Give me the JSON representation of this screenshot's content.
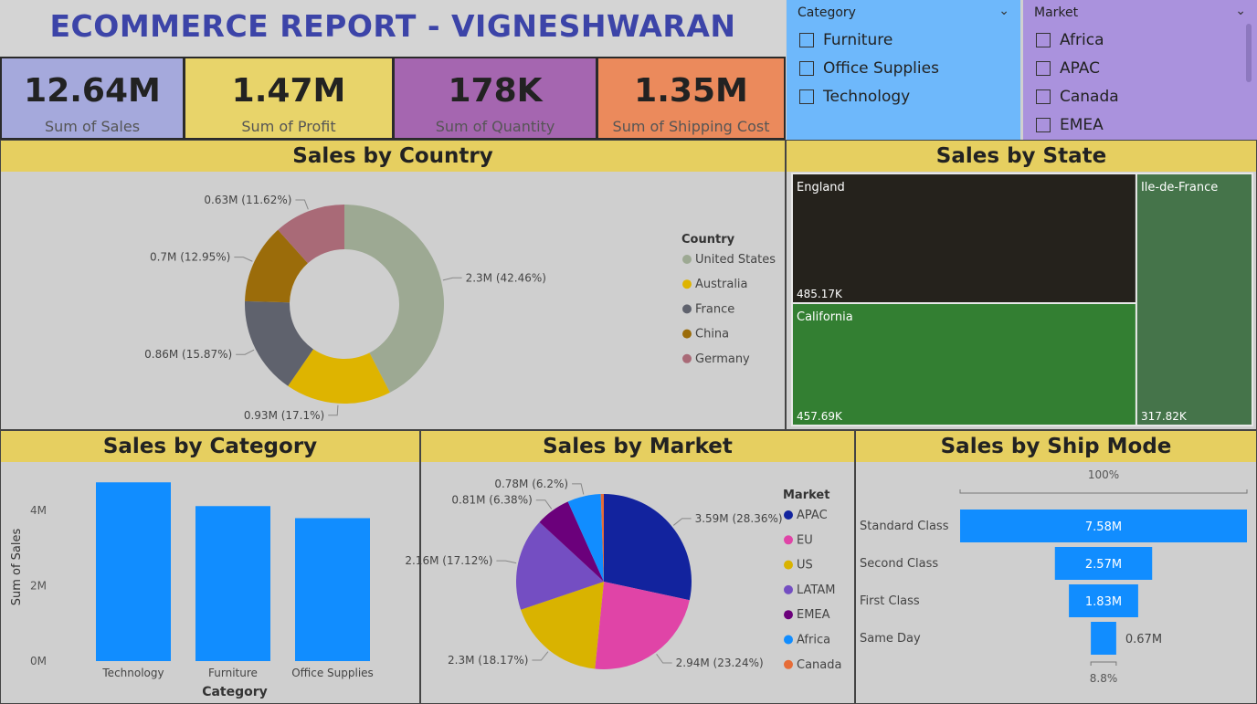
{
  "header": {
    "title": "ECOMMERCE REPORT - VIGNESHWARAN"
  },
  "kpis": [
    {
      "value": "12.64M",
      "label": "Sum of Sales",
      "color": "#a5a9dc"
    },
    {
      "value": "1.47M",
      "label": "Sum of Profit",
      "color": "#e8d46a"
    },
    {
      "value": "178K",
      "label": "Sum of Quantity",
      "color": "#a566b0"
    },
    {
      "value": "1.35M",
      "label": "Sum of Shipping Cost",
      "color": "#eb8a5c"
    }
  ],
  "category_slicer": {
    "title": "Category",
    "items": [
      "Furniture",
      "Office Supplies",
      "Technology"
    ],
    "chevron_icon": "chevron-down-icon"
  },
  "market_slicer": {
    "title": "Market",
    "items": [
      "Africa",
      "APAC",
      "Canada",
      "EMEA"
    ],
    "chevron_icon": "chevron-down-icon"
  },
  "panels": {
    "country": "Sales by Country",
    "state": "Sales by State",
    "category": "Sales by Category",
    "market": "Sales by Market",
    "shipmode": "Sales by Ship Mode"
  },
  "chart_data": [
    {
      "id": "country",
      "type": "pie",
      "variant": "donut",
      "title": "Sales by Country",
      "legend_title": "Country",
      "legend_position": "right",
      "categories": [
        "United States",
        "Australia",
        "France",
        "China",
        "Germany"
      ],
      "values": [
        2.3,
        0.93,
        0.86,
        0.7,
        0.63
      ],
      "labels": [
        "2.3M (42.46%)",
        "0.93M (17.1%)",
        "0.86M (15.87%)",
        "0.7M (12.95%)",
        "0.63M (11.62%)"
      ],
      "colors": [
        "#9da993",
        "#deb400",
        "#5f626d",
        "#9b6c0a",
        "#a96a77"
      ]
    },
    {
      "id": "state",
      "type": "treemap",
      "title": "Sales by State",
      "categories": [
        "England",
        "California",
        "Ile-de-France"
      ],
      "values": [
        485.17,
        457.69,
        317.82
      ],
      "labels": [
        "485.17K",
        "457.69K",
        "317.82K"
      ],
      "colors": [
        "#25221c",
        "#337f32",
        "#45744a"
      ]
    },
    {
      "id": "category",
      "type": "bar",
      "title": "Sales by Category",
      "xlabel": "Category",
      "ylabel": "Sum of Sales",
      "categories": [
        "Technology",
        "Furniture",
        "Office Supplies"
      ],
      "values": [
        4.74,
        4.11,
        3.79
      ],
      "yticks": [
        "0M",
        "2M",
        "4M"
      ],
      "ytick_values": [
        0,
        2,
        4
      ],
      "ylim": [
        0,
        5
      ],
      "color": "#118dff"
    },
    {
      "id": "market",
      "type": "pie",
      "title": "Sales by Market",
      "legend_title": "Market",
      "legend_position": "right",
      "categories": [
        "APAC",
        "EU",
        "US",
        "LATAM",
        "EMEA",
        "Africa",
        "Canada"
      ],
      "values": [
        3.59,
        2.94,
        2.3,
        2.16,
        0.81,
        0.78,
        0.07
      ],
      "labels": [
        "3.59M (28.36%)",
        "2.94M (23.24%)",
        "2.3M (18.17%)",
        "2.16M (17.12%)",
        "0.81M (6.38%)",
        "0.78M (6.2%)",
        ""
      ],
      "colors": [
        "#12239e",
        "#e044a7",
        "#d9b300",
        "#744ec2",
        "#6b007b",
        "#118dff",
        "#e66c37"
      ]
    },
    {
      "id": "shipmode",
      "type": "funnel",
      "title": "Sales by Ship Mode",
      "categories": [
        "Standard Class",
        "Second Class",
        "First Class",
        "Same Day"
      ],
      "values": [
        7.58,
        2.57,
        1.83,
        0.67
      ],
      "labels": [
        "7.58M",
        "2.57M",
        "1.83M",
        "0.67M"
      ],
      "top_percent": "100%",
      "bottom_percent": "8.8%",
      "color": "#118dff"
    }
  ]
}
